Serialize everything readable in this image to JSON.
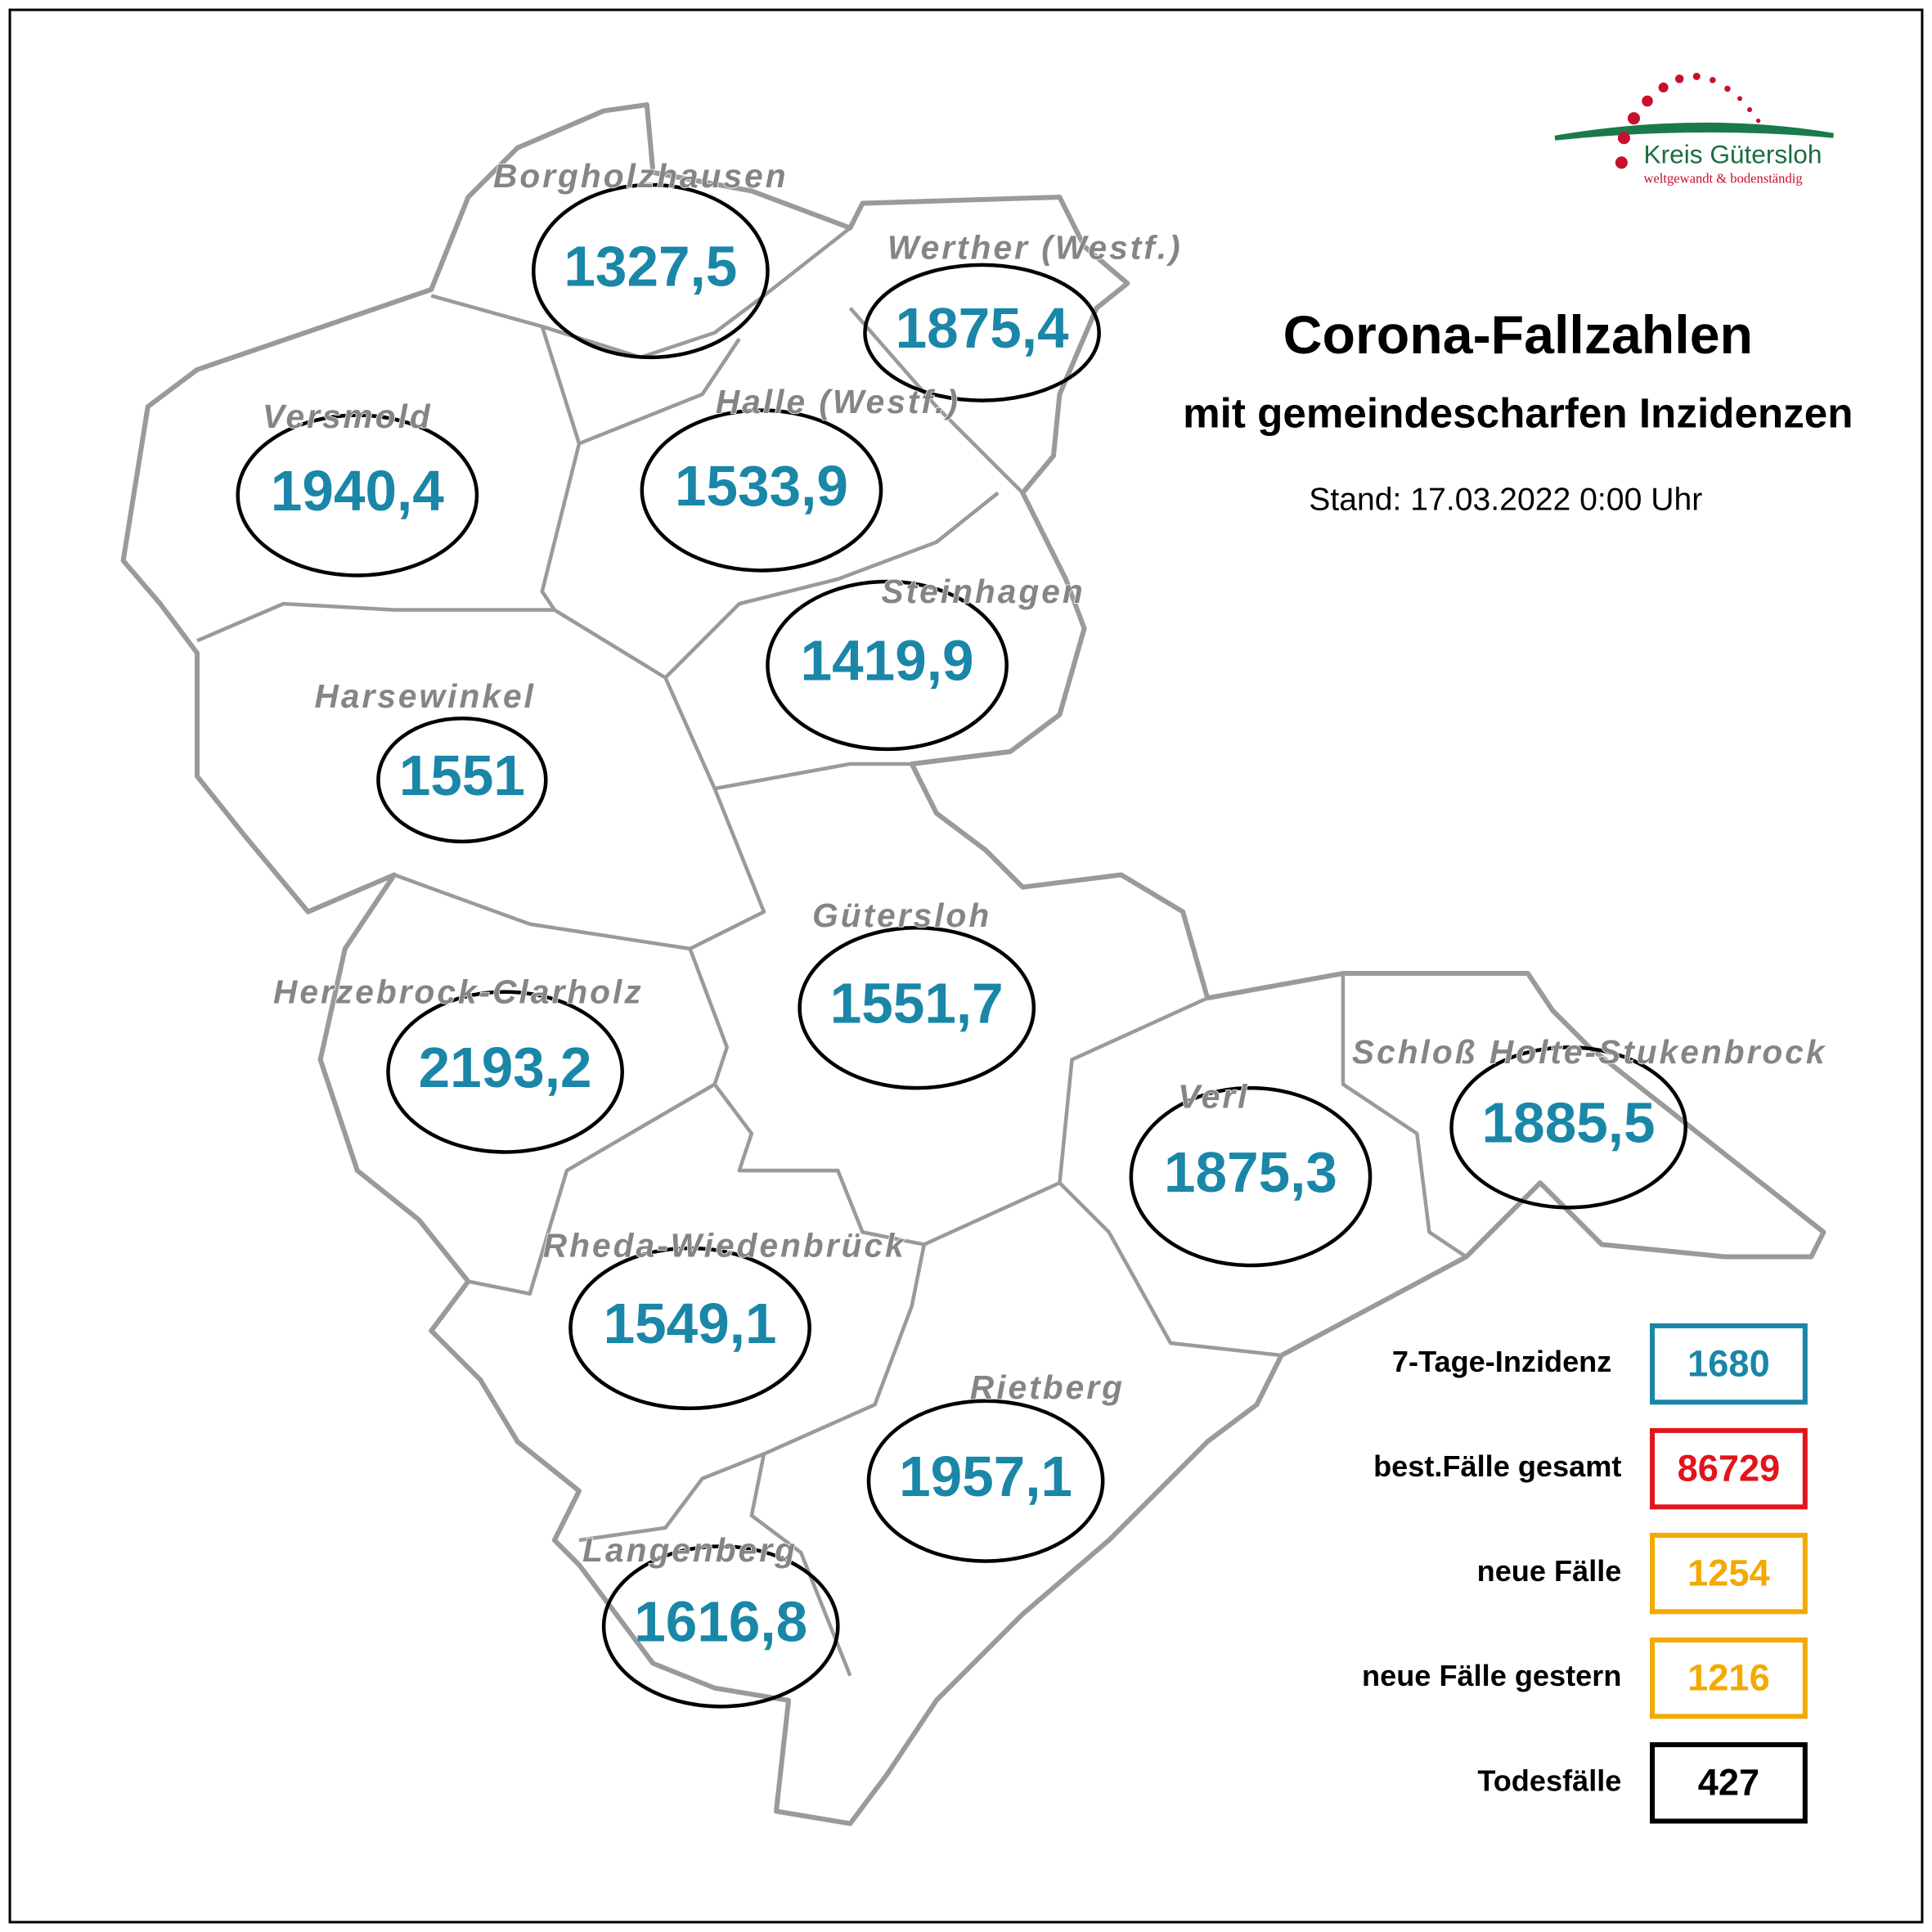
{
  "title": "Corona-Fallzahlen",
  "subtitle": "mit gemeindescharfen Inzidenzen",
  "stand": "Stand: 17.03.2022 0:00 Uhr",
  "logo": {
    "name": "Kreis Gütersloh",
    "slogan": "weltgewandt & bodenständig"
  },
  "municipalities": [
    {
      "name": "Borgholzhausen",
      "value": "1327,5"
    },
    {
      "name": "Werther (Westf.)",
      "value": "1875,4"
    },
    {
      "name": "Versmold",
      "value": "1940,4"
    },
    {
      "name": "Halle (Westf.)",
      "value": "1533,9"
    },
    {
      "name": "Steinhagen",
      "value": "1419,9"
    },
    {
      "name": "Harsewinkel",
      "value": "1551"
    },
    {
      "name": "Gütersloh",
      "value": "1551,7"
    },
    {
      "name": "Herzebrock-Clarholz",
      "value": "2193,2"
    },
    {
      "name": "Verl",
      "value": "1875,3"
    },
    {
      "name": "Schloß Holte-Stukenbrock",
      "value": "1885,5"
    },
    {
      "name": "Rheda-Wiedenbrück",
      "value": "1549,1"
    },
    {
      "name": "Rietberg",
      "value": "1957,1"
    },
    {
      "name": "Langenberg",
      "value": "1616,8"
    }
  ],
  "legend": [
    {
      "label": "7-Tage-Inzidenz",
      "value": "1680",
      "color": "#1a86a8"
    },
    {
      "label": "best.Fälle gesamt",
      "value": "86729",
      "color": "#e3141b"
    },
    {
      "label": "neue Fälle",
      "value": "1254",
      "color": "#f2a900"
    },
    {
      "label": "neue Fälle gestern",
      "value": "1216",
      "color": "#f2a900"
    },
    {
      "label": "Todesfälle",
      "value": "427",
      "color": "#000000"
    }
  ]
}
